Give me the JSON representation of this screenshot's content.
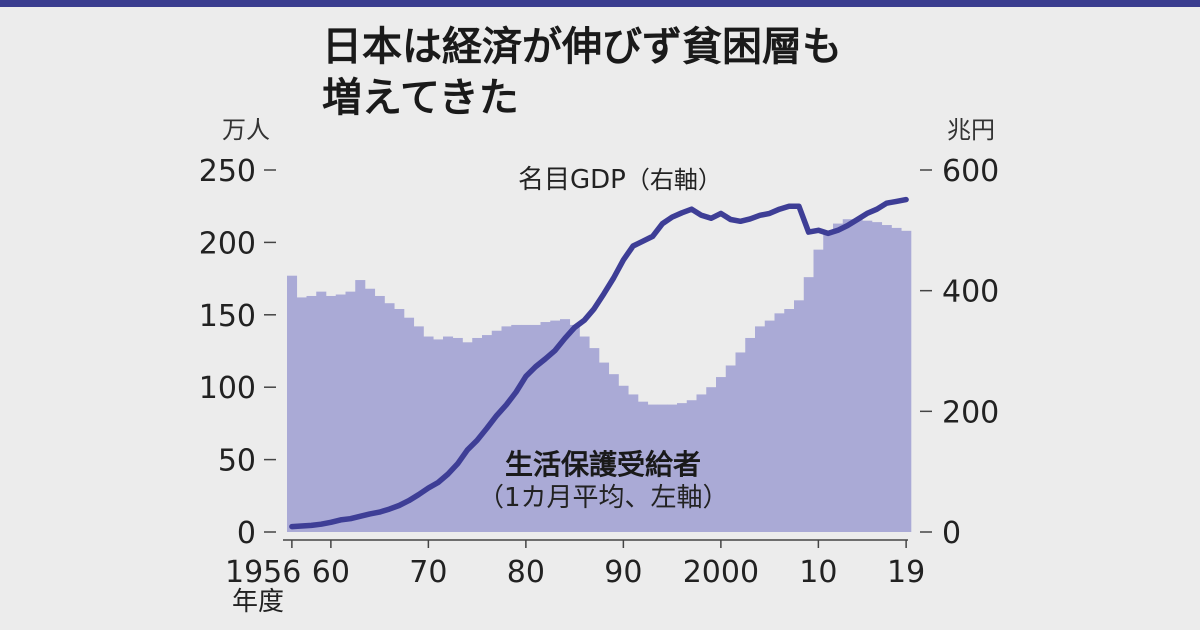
{
  "title_lines": [
    "日本は経済が伸びず貧困層も",
    "増えてきた"
  ],
  "chart_data": {
    "type": "bar+line",
    "title": "日本は経済が伸びず貧困層も増えてきた",
    "years": [
      1956,
      1957,
      1958,
      1959,
      1960,
      1961,
      1962,
      1963,
      1964,
      1965,
      1966,
      1967,
      1968,
      1969,
      1970,
      1971,
      1972,
      1973,
      1974,
      1975,
      1976,
      1977,
      1978,
      1979,
      1980,
      1981,
      1982,
      1983,
      1984,
      1985,
      1986,
      1987,
      1988,
      1989,
      1990,
      1991,
      1992,
      1993,
      1994,
      1995,
      1996,
      1997,
      1998,
      1999,
      2000,
      2001,
      2002,
      2003,
      2004,
      2005,
      2006,
      2007,
      2008,
      2009,
      2010,
      2011,
      2012,
      2013,
      2014,
      2015,
      2016,
      2017,
      2018,
      2019
    ],
    "left_axis": {
      "unit": "万人",
      "ylim": [
        0,
        250
      ],
      "ticks": [
        0,
        50,
        100,
        150,
        200,
        250
      ]
    },
    "right_axis": {
      "unit": "兆円",
      "ylim": [
        0,
        600
      ],
      "ticks": [
        0,
        200,
        400,
        600
      ]
    },
    "series": [
      {
        "name": "生活保護受給者",
        "subname": "（1カ月平均、左軸）",
        "axis": "left",
        "kind": "bar",
        "color": "#aaaad6",
        "values": [
          177,
          162,
          163,
          166,
          163,
          164,
          166,
          174,
          168,
          163,
          158,
          154,
          148,
          142,
          135,
          133,
          135,
          134,
          131,
          134,
          136,
          139,
          142,
          143,
          143,
          143,
          145,
          146,
          147,
          143,
          135,
          127,
          117,
          109,
          101,
          95,
          90,
          88,
          88,
          88,
          89,
          91,
          95,
          100,
          107,
          115,
          124,
          134,
          142,
          146,
          151,
          154,
          160,
          176,
          195,
          207,
          213,
          216,
          216,
          215,
          214,
          212,
          210,
          208
        ]
      },
      {
        "name": "名目GDP",
        "subname": "（右軸）",
        "axis": "right",
        "kind": "line",
        "color": "#3e3e96",
        "values": [
          9,
          10,
          11,
          13,
          16,
          20,
          22,
          26,
          30,
          33,
          38,
          44,
          52,
          62,
          73,
          82,
          96,
          113,
          136,
          152,
          172,
          193,
          211,
          232,
          258,
          274,
          287,
          301,
          321,
          339,
          351,
          370,
          395,
          421,
          451,
          474,
          482,
          490,
          511,
          522,
          529,
          535,
          525,
          520,
          528,
          518,
          515,
          519,
          525,
          528,
          535,
          540,
          540,
          497,
          500,
          495,
          500,
          508,
          518,
          528,
          535,
          545,
          548,
          551
        ]
      }
    ],
    "x_ticks": [
      {
        "year": 1956,
        "label": "1956"
      },
      {
        "year": 1960,
        "label": "60"
      },
      {
        "year": 1970,
        "label": "70"
      },
      {
        "year": 1980,
        "label": "80"
      },
      {
        "year": 1990,
        "label": "90"
      },
      {
        "year": 2000,
        "label": "2000"
      },
      {
        "year": 2010,
        "label": "10"
      },
      {
        "year": 2019,
        "label": "19"
      }
    ],
    "xlabel": "年度"
  },
  "colors": {
    "bars": "#aaaad6",
    "line": "#3e3e96",
    "background": "#ececec",
    "accent": "#3a3d8f"
  }
}
